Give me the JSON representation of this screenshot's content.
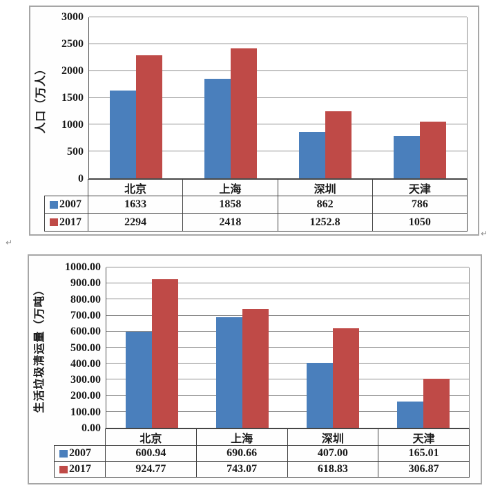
{
  "decorations": {
    "return_mark": "↵"
  },
  "colors": {
    "series_2007": "#4a7fbc",
    "series_2017": "#bf4a47",
    "gridline": "#8c8c8c",
    "table_border": "#3f3f3f",
    "outer_border": "#a6a6a6",
    "text": "#1a1a1a"
  },
  "chart_data": [
    {
      "type": "bar",
      "title": "",
      "ylabel": "人口（万人）",
      "xlabel": "",
      "categories": [
        "北京",
        "上海",
        "深圳",
        "天津"
      ],
      "series": [
        {
          "name": "2007",
          "values": [
            1633,
            1858,
            862,
            786
          ],
          "color_key": "series_2007"
        },
        {
          "name": "2017",
          "values": [
            2294,
            2418,
            1252.8,
            1050
          ],
          "color_key": "series_2017"
        }
      ],
      "table_values": [
        [
          "1633",
          "1858",
          "862",
          "786"
        ],
        [
          "2294",
          "2418",
          "1252.8",
          "1050"
        ]
      ],
      "ylim": [
        0,
        3000
      ],
      "ytick_step": 500,
      "ytick_labels": [
        "0",
        "500",
        "1000",
        "1500",
        "2000",
        "2500",
        "3000"
      ],
      "grid": true,
      "legend_position": "table-left"
    },
    {
      "type": "bar",
      "title": "",
      "ylabel": "生活垃圾清运量（万吨）",
      "xlabel": "",
      "categories": [
        "北京",
        "上海",
        "深圳",
        "天津"
      ],
      "series": [
        {
          "name": "2007",
          "values": [
            600.94,
            690.66,
            407.0,
            165.01
          ],
          "color_key": "series_2007"
        },
        {
          "name": "2017",
          "values": [
            924.77,
            743.07,
            618.83,
            306.87
          ],
          "color_key": "series_2017"
        }
      ],
      "table_values": [
        [
          "600.94",
          "690.66",
          "407.00",
          "165.01"
        ],
        [
          "924.77",
          "743.07",
          "618.83",
          "306.87"
        ]
      ],
      "ylim": [
        0,
        1000
      ],
      "ytick_step": 100,
      "ytick_labels": [
        "0.00",
        "100.00",
        "200.00",
        "300.00",
        "400.00",
        "500.00",
        "600.00",
        "700.00",
        "800.00",
        "900.00",
        "1000.00"
      ],
      "grid": true,
      "legend_position": "table-left"
    }
  ]
}
